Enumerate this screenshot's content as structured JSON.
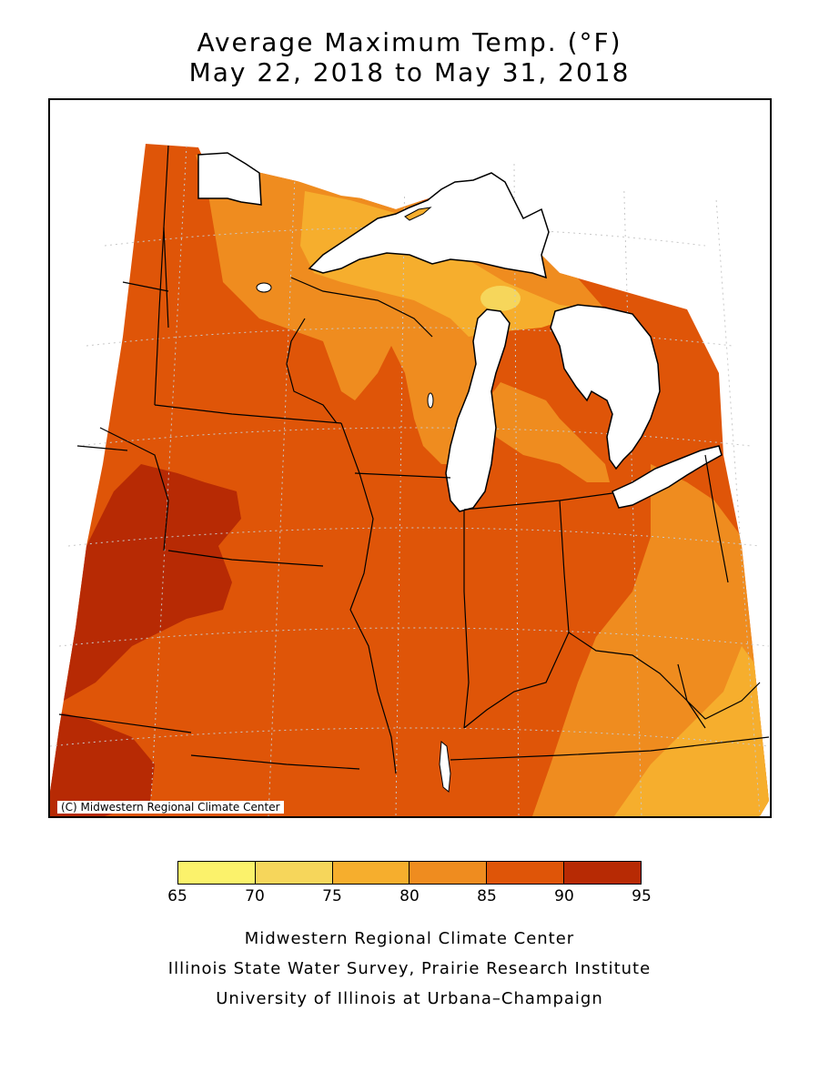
{
  "title": {
    "line1": "Average Maximum Temp. (°F)",
    "line2": "May 22, 2018 to May 31, 2018"
  },
  "map": {
    "copyright": "(C) Midwestern Regional Climate Center",
    "region": "Upper Midwest / Great Lakes",
    "colors": {
      "lake": "#ffffff",
      "border": "#000000",
      "grid": "#c8c8c8"
    }
  },
  "legend": {
    "ticks": [
      "65",
      "70",
      "75",
      "80",
      "85",
      "90",
      "95"
    ],
    "bins": [
      {
        "range": "65-70",
        "color": "#fbf26b"
      },
      {
        "range": "70-75",
        "color": "#f6d65b"
      },
      {
        "range": "75-80",
        "color": "#f6ae2d"
      },
      {
        "range": "80-85",
        "color": "#ef8c1f"
      },
      {
        "range": "85-90",
        "color": "#df5508"
      },
      {
        "range": "90-95",
        "color": "#b72a04"
      }
    ]
  },
  "credits": {
    "line1": "Midwestern Regional Climate Center",
    "line2": "Illinois State Water Survey, Prairie Research Institute",
    "line3": "University of Illinois at Urbana–Champaign"
  }
}
